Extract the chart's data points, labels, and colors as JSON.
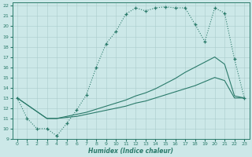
{
  "xlabel": "Humidex (Indice chaleur)",
  "bg_color": "#cce8e8",
  "line_color": "#2a7a6a",
  "grid_color": "#aacccc",
  "xlim": [
    -0.5,
    23.5
  ],
  "ylim": [
    9,
    22.3
  ],
  "xticks": [
    0,
    1,
    2,
    3,
    4,
    5,
    6,
    7,
    8,
    9,
    10,
    11,
    12,
    13,
    14,
    15,
    16,
    17,
    18,
    19,
    20,
    21,
    22,
    23
  ],
  "yticks": [
    9,
    10,
    11,
    12,
    13,
    14,
    15,
    16,
    17,
    18,
    19,
    20,
    21,
    22
  ],
  "line1_x": [
    0,
    1,
    2,
    3,
    4,
    5,
    6,
    7,
    8,
    9,
    10,
    11,
    12,
    13,
    14,
    15,
    16,
    17,
    18,
    19,
    20,
    21,
    22,
    23
  ],
  "line1_y": [
    13,
    11,
    10,
    10,
    9.3,
    10.5,
    11.8,
    13.3,
    16.0,
    18.3,
    19.5,
    21.2,
    21.8,
    21.5,
    21.8,
    21.9,
    21.8,
    21.8,
    20.2,
    18.5,
    21.8,
    21.3,
    16.8,
    13.0
  ],
  "line2_x": [
    0,
    3,
    4,
    5,
    6,
    7,
    8,
    9,
    10,
    11,
    12,
    13,
    14,
    15,
    16,
    17,
    18,
    19,
    20,
    21,
    22,
    23
  ],
  "line2_y": [
    13,
    11.0,
    11.0,
    11.2,
    11.4,
    11.6,
    11.9,
    12.2,
    12.5,
    12.8,
    13.2,
    13.5,
    13.9,
    14.4,
    14.9,
    15.5,
    16.0,
    16.5,
    17.0,
    16.3,
    13.2,
    13.0
  ],
  "line3_x": [
    0,
    3,
    4,
    5,
    6,
    7,
    8,
    9,
    10,
    11,
    12,
    13,
    14,
    15,
    16,
    17,
    18,
    19,
    20,
    21,
    22,
    23
  ],
  "line3_y": [
    13,
    11.0,
    11.0,
    11.1,
    11.2,
    11.4,
    11.6,
    11.8,
    12.0,
    12.2,
    12.5,
    12.7,
    13.0,
    13.3,
    13.6,
    13.9,
    14.2,
    14.6,
    15.0,
    14.7,
    13.0,
    13.0
  ]
}
